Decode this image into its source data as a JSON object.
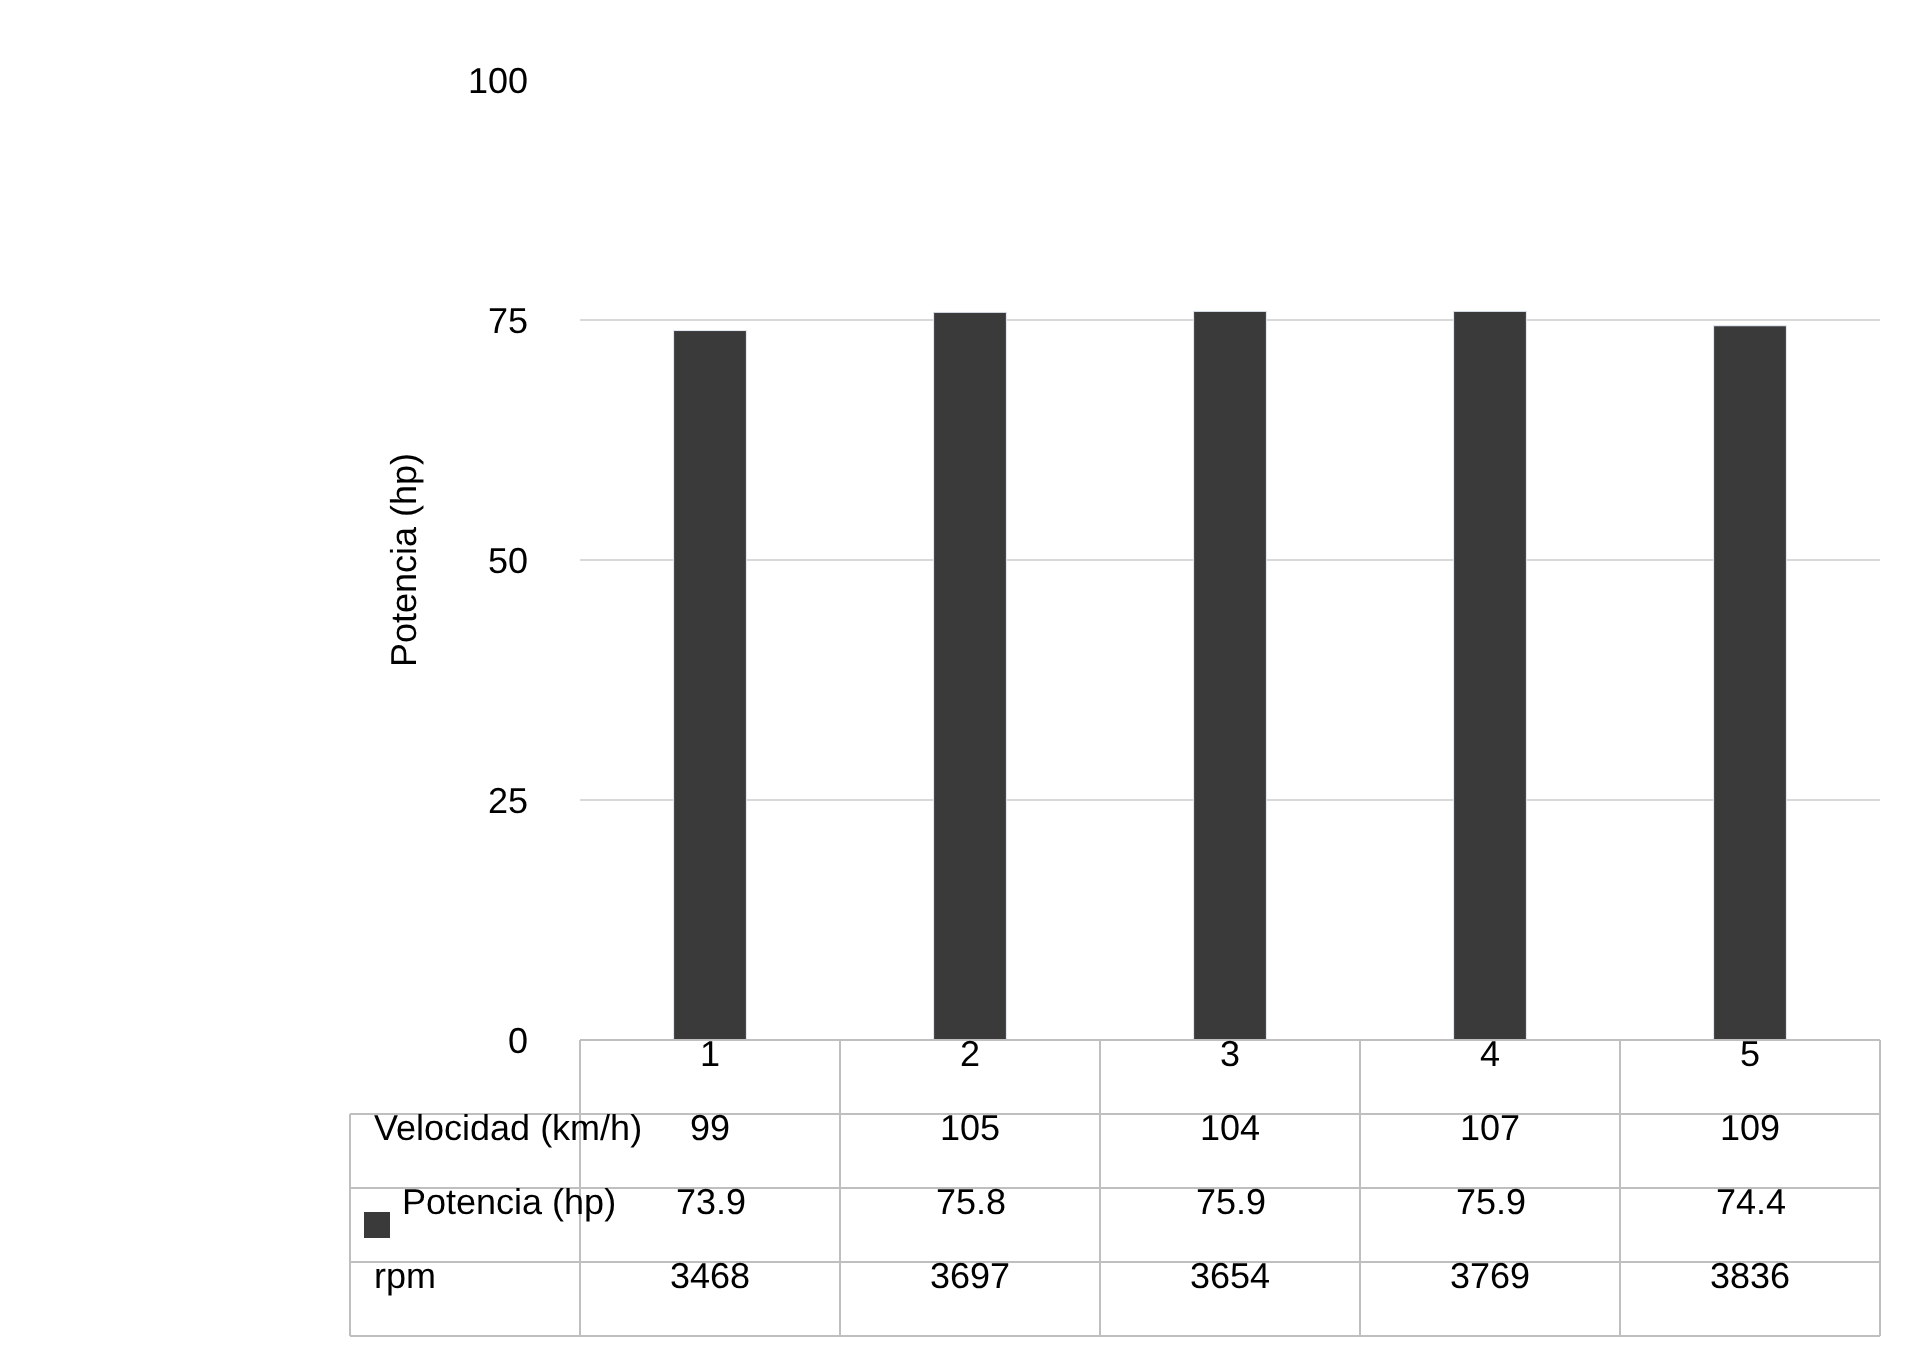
{
  "chart_data": {
    "type": "bar",
    "ylabel": "Potencia (hp)",
    "categories": [
      "1",
      "2",
      "3",
      "4",
      "5"
    ],
    "series": [
      {
        "name": "Potencia (hp)",
        "color": "#3a3a3a",
        "values": [
          73.9,
          75.8,
          75.9,
          75.9,
          74.4
        ]
      }
    ],
    "annotations": [
      "Velocidad (km/h)",
      "99",
      "105",
      "104",
      "107",
      "109",
      "rpm",
      "3468",
      "3697",
      "3654",
      "3769",
      "3836"
    ],
    "ylim": [
      0,
      100
    ],
    "yticks": [
      0,
      25,
      50,
      75,
      100
    ],
    "grid": "y",
    "data_labels": true
  }
}
